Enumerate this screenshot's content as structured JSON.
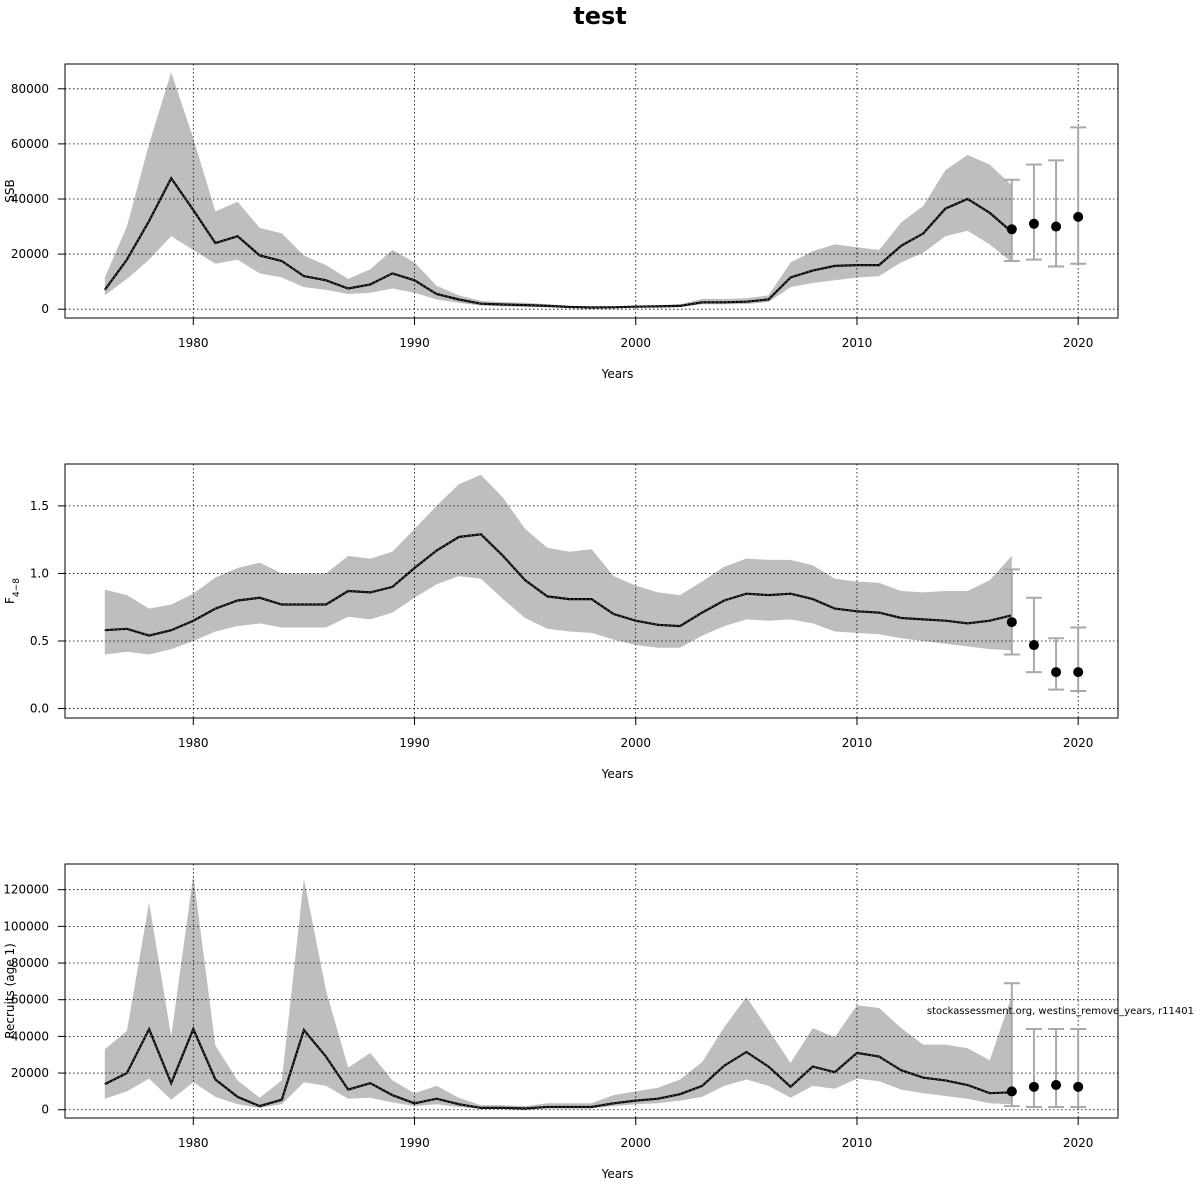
{
  "title": "test",
  "footnote": "stockassessment.org, westins_remove_years, r11401",
  "colors": {
    "band": "#bebebe",
    "line": "#000000",
    "errorbar": "#a9a9a9",
    "grid": "#000000"
  },
  "chart_data": [
    {
      "type": "line",
      "ylabel": "SSB",
      "xlabel": "Years",
      "grid": true,
      "xlim": [
        1974.2,
        2021.8
      ],
      "ylim": [
        -3200,
        89000
      ],
      "xticks": [
        1980,
        1990,
        2000,
        2010,
        2020
      ],
      "yticks": [
        0,
        20000,
        40000,
        60000,
        80000
      ],
      "x": [
        1976,
        1977,
        1978,
        1979,
        1980,
        1981,
        1982,
        1983,
        1984,
        1985,
        1986,
        1987,
        1988,
        1989,
        1990,
        1991,
        1992,
        1993,
        1994,
        1995,
        1996,
        1997,
        1998,
        1999,
        2000,
        2001,
        2002,
        2003,
        2004,
        2005,
        2006,
        2007,
        2008,
        2009,
        2010,
        2011,
        2012,
        2013,
        2014,
        2015,
        2016,
        2017
      ],
      "estimate": [
        7000,
        18000,
        32000,
        47500,
        36000,
        24000,
        26500,
        19500,
        17500,
        12000,
        10500,
        7500,
        9000,
        13000,
        10500,
        5500,
        3500,
        2000,
        1700,
        1500,
        1200,
        800,
        600,
        700,
        900,
        1000,
        1200,
        2500,
        2500,
        2700,
        3500,
        11500,
        14000,
        15700,
        16000,
        16000,
        23000,
        27500,
        36500,
        40000,
        35000,
        28000
      ],
      "lower": [
        5000,
        11000,
        18000,
        26500,
        21500,
        16500,
        18000,
        13000,
        11500,
        8000,
        7000,
        5500,
        6000,
        7500,
        6000,
        3500,
        2300,
        1300,
        1000,
        900,
        700,
        500,
        400,
        450,
        600,
        650,
        800,
        1800,
        1800,
        1900,
        2600,
        8000,
        9500,
        10500,
        11500,
        12000,
        17000,
        20500,
        26500,
        28500,
        23500,
        17000
      ],
      "upper": [
        11500,
        30000,
        60000,
        86000,
        62000,
        35500,
        39000,
        29500,
        27500,
        19500,
        16000,
        11000,
        14500,
        21500,
        17000,
        8500,
        5000,
        3000,
        2500,
        2300,
        1800,
        1300,
        1000,
        1100,
        1300,
        1400,
        1800,
        3700,
        3700,
        4000,
        5000,
        17000,
        21000,
        23500,
        22500,
        21500,
        31500,
        37500,
        50500,
        56000,
        52500,
        45000
      ],
      "forecast": {
        "x": [
          2017,
          2018,
          2019,
          2020
        ],
        "median": [
          29000,
          31000,
          30000,
          33500
        ],
        "low": [
          17500,
          18000,
          15500,
          16500
        ],
        "high": [
          47000,
          52500,
          54000,
          66000
        ]
      }
    },
    {
      "type": "line",
      "ylabel": "F",
      "ylabel_sub": "4−8",
      "xlabel": "Years",
      "grid": true,
      "xlim": [
        1974.2,
        2021.8
      ],
      "ylim": [
        -0.07,
        1.81
      ],
      "xticks": [
        1980,
        1990,
        2000,
        2010,
        2020
      ],
      "yticks": [
        "0.0",
        "0.5",
        "1.0",
        "1.5"
      ],
      "x": [
        1976,
        1977,
        1978,
        1979,
        1980,
        1981,
        1982,
        1983,
        1984,
        1985,
        1986,
        1987,
        1988,
        1989,
        1990,
        1991,
        1992,
        1993,
        1994,
        1995,
        1996,
        1997,
        1998,
        1999,
        2000,
        2001,
        2002,
        2003,
        2004,
        2005,
        2006,
        2007,
        2008,
        2009,
        2010,
        2011,
        2012,
        2013,
        2014,
        2015,
        2016,
        2017
      ],
      "estimate": [
        0.58,
        0.59,
        0.54,
        0.58,
        0.65,
        0.74,
        0.8,
        0.82,
        0.77,
        0.77,
        0.77,
        0.87,
        0.86,
        0.9,
        1.04,
        1.17,
        1.27,
        1.29,
        1.13,
        0.95,
        0.83,
        0.81,
        0.81,
        0.7,
        0.65,
        0.62,
        0.61,
        0.71,
        0.8,
        0.85,
        0.84,
        0.85,
        0.81,
        0.74,
        0.72,
        0.71,
        0.67,
        0.66,
        0.65,
        0.63,
        0.65,
        0.69
      ],
      "lower": [
        0.4,
        0.42,
        0.4,
        0.44,
        0.5,
        0.57,
        0.61,
        0.63,
        0.6,
        0.6,
        0.6,
        0.68,
        0.66,
        0.71,
        0.82,
        0.92,
        0.98,
        0.96,
        0.81,
        0.67,
        0.59,
        0.57,
        0.56,
        0.51,
        0.47,
        0.45,
        0.45,
        0.54,
        0.61,
        0.66,
        0.65,
        0.66,
        0.63,
        0.57,
        0.56,
        0.55,
        0.52,
        0.5,
        0.48,
        0.46,
        0.44,
        0.43
      ],
      "upper": [
        0.88,
        0.84,
        0.74,
        0.77,
        0.85,
        0.97,
        1.04,
        1.08,
        1.0,
        1.0,
        1.0,
        1.13,
        1.11,
        1.16,
        1.33,
        1.5,
        1.66,
        1.73,
        1.56,
        1.33,
        1.19,
        1.16,
        1.18,
        0.98,
        0.91,
        0.86,
        0.84,
        0.94,
        1.05,
        1.11,
        1.1,
        1.1,
        1.06,
        0.96,
        0.94,
        0.93,
        0.87,
        0.86,
        0.87,
        0.87,
        0.95,
        1.13
      ],
      "forecast": {
        "x": [
          2017,
          2018,
          2019,
          2020
        ],
        "median": [
          0.64,
          0.47,
          0.27,
          0.27
        ],
        "low": [
          0.4,
          0.27,
          0.14,
          0.13
        ],
        "high": [
          1.03,
          0.82,
          0.52,
          0.6
        ]
      }
    },
    {
      "type": "line",
      "ylabel": "Recruits (age 1)",
      "xlabel": "Years",
      "grid": true,
      "xlim": [
        1974.2,
        2021.8
      ],
      "ylim": [
        -4500,
        134000
      ],
      "xticks": [
        1980,
        1990,
        2000,
        2010,
        2020
      ],
      "yticks": [
        0,
        20000,
        40000,
        60000,
        80000,
        100000,
        120000
      ],
      "x": [
        1976,
        1977,
        1978,
        1979,
        1980,
        1981,
        1982,
        1983,
        1984,
        1985,
        1986,
        1987,
        1988,
        1989,
        1990,
        1991,
        1992,
        1993,
        1994,
        1995,
        1996,
        1997,
        1998,
        1999,
        2000,
        2001,
        2002,
        2003,
        2004,
        2005,
        2006,
        2007,
        2008,
        2009,
        2010,
        2011,
        2012,
        2013,
        2014,
        2015,
        2016,
        2017
      ],
      "estimate": [
        14000,
        20000,
        44000,
        14500,
        44000,
        16500,
        7000,
        2000,
        5500,
        43500,
        29000,
        11000,
        14500,
        8000,
        3500,
        6000,
        3000,
        1000,
        1000,
        700,
        1500,
        1500,
        1500,
        3500,
        5000,
        6000,
        8500,
        13000,
        24000,
        31500,
        23500,
        12500,
        23500,
        20500,
        31000,
        29000,
        21500,
        17500,
        16000,
        13500,
        9000,
        9500
      ],
      "lower": [
        6000,
        10000,
        17000,
        5500,
        15000,
        7000,
        3000,
        1000,
        3000,
        15000,
        13000,
        6000,
        6500,
        4000,
        2000,
        3000,
        1500,
        500,
        500,
        400,
        800,
        800,
        800,
        2000,
        3000,
        3500,
        5000,
        7000,
        13000,
        16500,
        13000,
        6500,
        13000,
        11500,
        17000,
        15500,
        11000,
        9000,
        7500,
        6000,
        3500,
        3000
      ],
      "upper": [
        33000,
        43000,
        113000,
        40000,
        128000,
        35000,
        16000,
        6500,
        16000,
        126000,
        65000,
        23000,
        31000,
        16000,
        9000,
        13000,
        6500,
        2500,
        2500,
        2000,
        3500,
        3500,
        3500,
        8000,
        10000,
        12000,
        16500,
        26000,
        45000,
        61500,
        43500,
        25500,
        44500,
        39500,
        57000,
        55500,
        44500,
        35500,
        35500,
        33500,
        27000,
        62000
      ],
      "forecast": {
        "x": [
          2017,
          2018,
          2019,
          2020
        ],
        "median": [
          10000,
          12500,
          13500,
          12500
        ],
        "low": [
          2000,
          1500,
          1500,
          1500
        ],
        "high": [
          69000,
          44000,
          44000,
          44000
        ]
      }
    }
  ]
}
